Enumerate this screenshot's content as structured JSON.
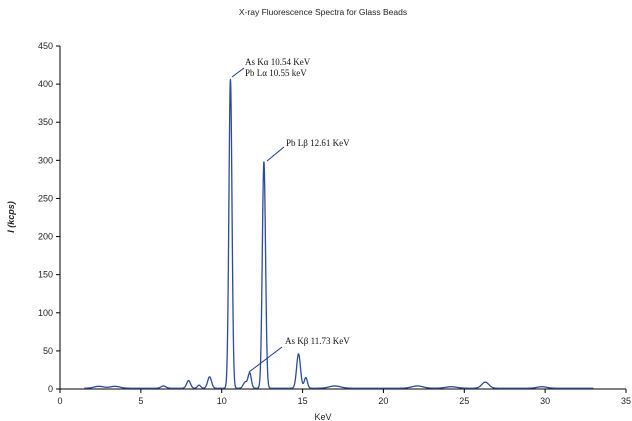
{
  "chart_data": {
    "type": "line",
    "title": "X-ray Fluorescence Spectra for Glass Beads",
    "xlabel": "KeV",
    "ylabel": "I (kcps)",
    "xlim": [
      0,
      35
    ],
    "ylim": [
      0,
      450
    ],
    "xticks": [
      0,
      5,
      10,
      15,
      20,
      25,
      30,
      35
    ],
    "yticks": [
      0,
      50,
      100,
      150,
      200,
      250,
      300,
      350,
      400,
      450
    ],
    "grid": false,
    "line_color": "#2a4a9a",
    "series": [
      {
        "baseline": 1,
        "peaks": [
          {
            "x": 2.4,
            "y": 2.5,
            "w": 0.3
          },
          {
            "x": 3.4,
            "y": 2.5,
            "w": 0.3
          },
          {
            "x": 6.4,
            "y": 3,
            "w": 0.15
          },
          {
            "x": 7.95,
            "y": 10,
            "w": 0.12
          },
          {
            "x": 8.6,
            "y": 4,
            "w": 0.1
          },
          {
            "x": 9.25,
            "y": 15,
            "w": 0.12
          },
          {
            "x": 10.54,
            "y": 405,
            "w": 0.095
          },
          {
            "x": 11.45,
            "y": 8,
            "w": 0.12
          },
          {
            "x": 11.73,
            "y": 20,
            "w": 0.1
          },
          {
            "x": 12.61,
            "y": 297,
            "w": 0.1
          },
          {
            "x": 14.75,
            "y": 45,
            "w": 0.12
          },
          {
            "x": 15.2,
            "y": 14,
            "w": 0.1
          },
          {
            "x": 17.0,
            "y": 3,
            "w": 0.35
          },
          {
            "x": 22.1,
            "y": 3,
            "w": 0.35
          },
          {
            "x": 24.2,
            "y": 2,
            "w": 0.35
          },
          {
            "x": 26.3,
            "y": 8,
            "w": 0.22
          },
          {
            "x": 29.8,
            "y": 2,
            "w": 0.3
          }
        ]
      }
    ],
    "annotations": [
      {
        "lines": [
          "As Kα 10.54 KeV",
          "Pb Lα 10.55 keV"
        ],
        "x": 10.54,
        "y": 405
      },
      {
        "lines": [
          "Pb Lβ 12.61 KeV"
        ],
        "x": 12.61,
        "y": 297
      },
      {
        "lines": [
          "As Kβ 11.73 KeV"
        ],
        "x": 11.73,
        "y": 20
      }
    ]
  }
}
